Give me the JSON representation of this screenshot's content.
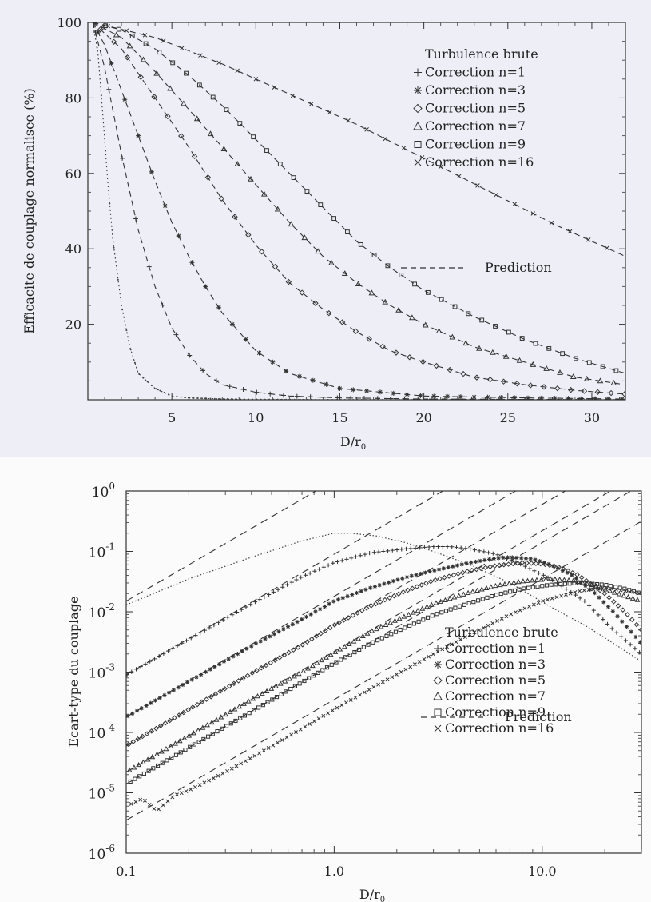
{
  "chart_data": [
    {
      "type": "line",
      "ylabel": "Efficacite de couplage normalisee (%)",
      "xlabel": "D/r",
      "xlabel_sub": "0",
      "xlim": [
        0,
        32
      ],
      "ylim": [
        0,
        100
      ],
      "x_ticks": [
        "5",
        "10",
        "15",
        "20",
        "25",
        "30"
      ],
      "x_tick_values": [
        5,
        10,
        15,
        20,
        25,
        30
      ],
      "y_ticks": [
        "20",
        "40",
        "60",
        "80",
        "100"
      ],
      "y_tick_values": [
        20,
        40,
        60,
        80,
        100
      ],
      "legend_position": "top-right",
      "legend": [
        "Turbulence brute",
        "Correction n=1",
        "Correction n=3",
        "Correction n=5",
        "Correction n=7",
        "Correction n=9",
        "Correction n=16"
      ],
      "prediction_label": "Prediction",
      "series": [
        {
          "name": "Turbulence brute",
          "marker": "dot",
          "x": [
            0.3,
            0.6,
            0.9,
            1.2,
            1.5,
            2,
            2.5,
            3,
            4,
            5,
            6,
            8,
            10,
            14,
            20,
            26,
            32
          ],
          "values": [
            100,
            92,
            75,
            57,
            42,
            25,
            14,
            7,
            3,
            1,
            0.5,
            0.2,
            0.1,
            0,
            0,
            0,
            0
          ]
        },
        {
          "name": "Correction n=1",
          "marker": "plus",
          "x": [
            0.3,
            1,
            2,
            3,
            4,
            5,
            6,
            7,
            8,
            10,
            12,
            15,
            20,
            26,
            32
          ],
          "values": [
            100,
            88,
            65,
            45,
            30,
            19,
            12,
            7,
            4,
            2,
            1,
            0.5,
            0.2,
            0.1,
            0
          ]
        },
        {
          "name": "Correction n=3",
          "marker": "asterisk",
          "x": [
            0.3,
            1,
            2,
            3,
            4,
            5,
            6,
            7,
            8,
            10,
            12,
            15,
            20,
            26,
            32
          ],
          "values": [
            100,
            94,
            82,
            70,
            58,
            47,
            38,
            30,
            23,
            13,
            7,
            3,
            1,
            0.5,
            0.2
          ]
        },
        {
          "name": "Correction n=5",
          "marker": "diamond",
          "x": [
            0.3,
            2,
            4,
            6,
            8,
            10,
            12,
            14,
            16,
            18,
            20,
            23,
            26,
            29,
            32
          ],
          "values": [
            100,
            93,
            80,
            67,
            53,
            41,
            31,
            24,
            18,
            13,
            10,
            6,
            4,
            2.5,
            1.5
          ]
        },
        {
          "name": "Correction n=7",
          "marker": "triangle",
          "x": [
            0.3,
            2,
            4,
            6,
            8,
            10,
            12,
            14,
            16,
            18,
            20,
            23,
            26,
            29,
            32
          ],
          "values": [
            100,
            96,
            87,
            77,
            67,
            57,
            47,
            38,
            31,
            25,
            20,
            14,
            10,
            6,
            4
          ]
        },
        {
          "name": "Correction n=9",
          "marker": "square",
          "x": [
            0.3,
            2,
            4,
            6,
            8,
            10,
            12,
            14,
            16,
            18,
            20,
            23,
            26,
            29,
            32
          ],
          "values": [
            100,
            98,
            93,
            86,
            78,
            69,
            60,
            51,
            42,
            35,
            29,
            22,
            16,
            11,
            7
          ]
        },
        {
          "name": "Correction n=16",
          "marker": "cross",
          "x": [
            0.3,
            4,
            8,
            12,
            16,
            20,
            24,
            28,
            32
          ],
          "values": [
            100,
            96,
            89,
            81,
            73,
            64,
            55,
            46,
            38
          ]
        }
      ]
    },
    {
      "type": "line",
      "ylabel": "Ecart-type du couplage",
      "xlabel": "D/r",
      "xlabel_sub": "0",
      "xscale": "log",
      "yscale": "log",
      "xlim": [
        0.1,
        30
      ],
      "ylim": [
        1e-06,
        1
      ],
      "x_ticks": [
        "0.1",
        "1.0",
        "10.0"
      ],
      "x_tick_values": [
        0.1,
        1,
        10
      ],
      "y_ticks": [
        {
          "base": "10",
          "exp": "0",
          "value": 1
        },
        {
          "base": "10",
          "exp": "-1",
          "value": 0.1
        },
        {
          "base": "10",
          "exp": "-2",
          "value": 0.01
        },
        {
          "base": "10",
          "exp": "-3",
          "value": 0.001
        },
        {
          "base": "10",
          "exp": "-4",
          "value": 0.0001
        },
        {
          "base": "10",
          "exp": "-5",
          "value": 1e-05
        },
        {
          "base": "10",
          "exp": "-6",
          "value": 1e-06
        }
      ],
      "legend_position": "bottom-right",
      "legend": [
        "Turbulence brute",
        "Correction n=1",
        "Correction n=3",
        "Correction n=5",
        "Correction n=7",
        "Correction n=9",
        "Correction n=16"
      ],
      "prediction_label": "Prediction",
      "series": [
        {
          "name": "Turbulence brute",
          "marker": "dot",
          "x": [
            0.1,
            0.2,
            0.4,
            0.7,
            1.0,
            1.2,
            1.6,
            2.2,
            3,
            4.5,
            7,
            11,
            16,
            22,
            30
          ],
          "values": [
            0.013,
            0.035,
            0.08,
            0.15,
            0.2,
            0.2,
            0.18,
            0.14,
            0.1,
            0.06,
            0.03,
            0.012,
            0.006,
            0.003,
            0.0015
          ]
        },
        {
          "name": "Correction n=1",
          "marker": "plus",
          "x": [
            0.1,
            0.2,
            0.4,
            0.7,
            1.0,
            1.5,
            2.2,
            3,
            3.6,
            4.5,
            6,
            8,
            11,
            16,
            22,
            30
          ],
          "values": [
            0.0009,
            0.0035,
            0.0135,
            0.038,
            0.065,
            0.095,
            0.11,
            0.12,
            0.12,
            0.11,
            0.09,
            0.06,
            0.035,
            0.015,
            0.005,
            0.002
          ]
        },
        {
          "name": "Correction n=3",
          "marker": "asterisk",
          "x": [
            0.1,
            0.2,
            0.4,
            0.7,
            1.0,
            1.5,
            2.2,
            3,
            4.5,
            6,
            7,
            9,
            11,
            14,
            18,
            22,
            30
          ],
          "values": [
            0.00018,
            0.0007,
            0.0027,
            0.0075,
            0.015,
            0.025,
            0.037,
            0.048,
            0.065,
            0.077,
            0.08,
            0.075,
            0.06,
            0.04,
            0.02,
            0.01,
            0.003
          ]
        },
        {
          "name": "Correction n=5",
          "marker": "diamond",
          "x": [
            0.1,
            0.2,
            0.4,
            0.7,
            1.0,
            1.5,
            2.2,
            3,
            4.5,
            6,
            8,
            10,
            12,
            15,
            20,
            25,
            30
          ],
          "values": [
            6e-05,
            0.00024,
            0.00095,
            0.0028,
            0.006,
            0.0125,
            0.022,
            0.033,
            0.048,
            0.058,
            0.065,
            0.062,
            0.055,
            0.04,
            0.02,
            0.01,
            0.005
          ]
        },
        {
          "name": "Correction n=7",
          "marker": "triangle",
          "x": [
            0.1,
            0.2,
            0.4,
            0.7,
            1.0,
            1.5,
            2.2,
            3,
            4.5,
            6,
            8,
            11,
            14,
            18,
            23,
            30
          ],
          "values": [
            2.2e-05,
            8.8e-05,
            0.00035,
            0.001,
            0.0021,
            0.0047,
            0.0085,
            0.0135,
            0.021,
            0.027,
            0.032,
            0.035,
            0.033,
            0.027,
            0.02,
            0.015
          ]
        },
        {
          "name": "Correction n=9",
          "marker": "square",
          "x": [
            0.1,
            0.2,
            0.4,
            0.7,
            1.0,
            1.5,
            2.2,
            3,
            4.5,
            6,
            8,
            11,
            15,
            20,
            25,
            30
          ],
          "values": [
            1.4e-05,
            5.6e-05,
            0.00022,
            0.00068,
            0.0014,
            0.003,
            0.0055,
            0.0088,
            0.014,
            0.019,
            0.024,
            0.028,
            0.03,
            0.028,
            0.024,
            0.02
          ]
        },
        {
          "name": "Correction n=16",
          "marker": "cross",
          "x": [
            0.1,
            0.12,
            0.14,
            0.17,
            0.2,
            0.25,
            0.3,
            0.4,
            0.6,
            1.0,
            1.5,
            2.2,
            3,
            4.5,
            7,
            10,
            15,
            20,
            30
          ],
          "values": [
            6e-06,
            8e-06,
            5e-06,
            9e-06,
            1.1e-05,
            1.6e-05,
            2.2e-05,
            3.8e-05,
            8.5e-05,
            0.00024,
            0.00053,
            0.0011,
            0.002,
            0.0042,
            0.009,
            0.015,
            0.022,
            0.025,
            0.02
          ]
        }
      ],
      "prediction_lines": [
        {
          "x": [
            0.1,
            30
          ],
          "values": [
            0.015,
            1350
          ]
        },
        {
          "x": [
            0.1,
            30
          ],
          "values": [
            0.0009,
            81
          ]
        },
        {
          "x": [
            0.1,
            30
          ],
          "values": [
            0.00018,
            16.2
          ]
        },
        {
          "x": [
            0.1,
            30
          ],
          "values": [
            6e-05,
            5.4
          ]
        },
        {
          "x": [
            0.1,
            30
          ],
          "values": [
            2.2e-05,
            1.98
          ]
        },
        {
          "x": [
            0.1,
            30
          ],
          "values": [
            1.4e-05,
            1.26
          ]
        },
        {
          "x": [
            0.1,
            30
          ],
          "values": [
            3.5e-06,
            0.315
          ]
        }
      ]
    }
  ]
}
